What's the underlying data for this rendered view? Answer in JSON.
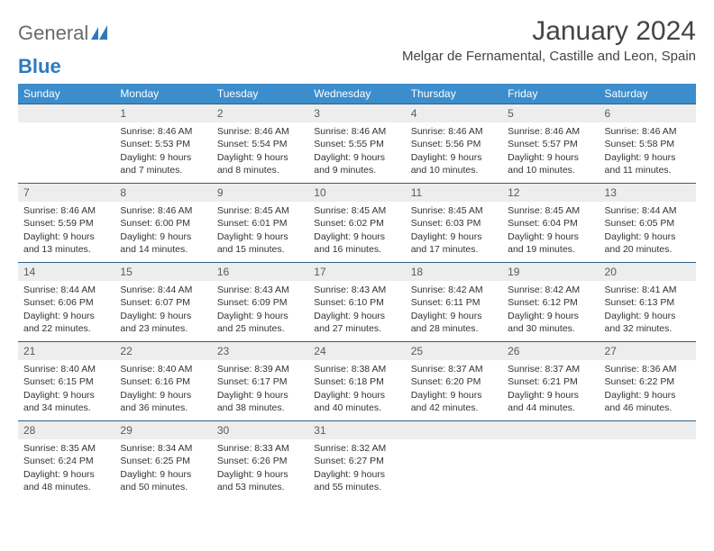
{
  "logo": {
    "text1": "General",
    "text2": "Blue"
  },
  "title": "January 2024",
  "location": "Melgar de Fernamental, Castille and Leon, Spain",
  "header_bg": "#3c8dcc",
  "daynum_bg": "#ededed",
  "border_color": "#2f5f8a",
  "weekdays": [
    "Sunday",
    "Monday",
    "Tuesday",
    "Wednesday",
    "Thursday",
    "Friday",
    "Saturday"
  ],
  "weeks": [
    [
      {
        "n": "",
        "sunrise": "",
        "sunset": "",
        "daylight": ""
      },
      {
        "n": "1",
        "sunrise": "Sunrise: 8:46 AM",
        "sunset": "Sunset: 5:53 PM",
        "daylight": "Daylight: 9 hours and 7 minutes."
      },
      {
        "n": "2",
        "sunrise": "Sunrise: 8:46 AM",
        "sunset": "Sunset: 5:54 PM",
        "daylight": "Daylight: 9 hours and 8 minutes."
      },
      {
        "n": "3",
        "sunrise": "Sunrise: 8:46 AM",
        "sunset": "Sunset: 5:55 PM",
        "daylight": "Daylight: 9 hours and 9 minutes."
      },
      {
        "n": "4",
        "sunrise": "Sunrise: 8:46 AM",
        "sunset": "Sunset: 5:56 PM",
        "daylight": "Daylight: 9 hours and 10 minutes."
      },
      {
        "n": "5",
        "sunrise": "Sunrise: 8:46 AM",
        "sunset": "Sunset: 5:57 PM",
        "daylight": "Daylight: 9 hours and 10 minutes."
      },
      {
        "n": "6",
        "sunrise": "Sunrise: 8:46 AM",
        "sunset": "Sunset: 5:58 PM",
        "daylight": "Daylight: 9 hours and 11 minutes."
      }
    ],
    [
      {
        "n": "7",
        "sunrise": "Sunrise: 8:46 AM",
        "sunset": "Sunset: 5:59 PM",
        "daylight": "Daylight: 9 hours and 13 minutes."
      },
      {
        "n": "8",
        "sunrise": "Sunrise: 8:46 AM",
        "sunset": "Sunset: 6:00 PM",
        "daylight": "Daylight: 9 hours and 14 minutes."
      },
      {
        "n": "9",
        "sunrise": "Sunrise: 8:45 AM",
        "sunset": "Sunset: 6:01 PM",
        "daylight": "Daylight: 9 hours and 15 minutes."
      },
      {
        "n": "10",
        "sunrise": "Sunrise: 8:45 AM",
        "sunset": "Sunset: 6:02 PM",
        "daylight": "Daylight: 9 hours and 16 minutes."
      },
      {
        "n": "11",
        "sunrise": "Sunrise: 8:45 AM",
        "sunset": "Sunset: 6:03 PM",
        "daylight": "Daylight: 9 hours and 17 minutes."
      },
      {
        "n": "12",
        "sunrise": "Sunrise: 8:45 AM",
        "sunset": "Sunset: 6:04 PM",
        "daylight": "Daylight: 9 hours and 19 minutes."
      },
      {
        "n": "13",
        "sunrise": "Sunrise: 8:44 AM",
        "sunset": "Sunset: 6:05 PM",
        "daylight": "Daylight: 9 hours and 20 minutes."
      }
    ],
    [
      {
        "n": "14",
        "sunrise": "Sunrise: 8:44 AM",
        "sunset": "Sunset: 6:06 PM",
        "daylight": "Daylight: 9 hours and 22 minutes."
      },
      {
        "n": "15",
        "sunrise": "Sunrise: 8:44 AM",
        "sunset": "Sunset: 6:07 PM",
        "daylight": "Daylight: 9 hours and 23 minutes."
      },
      {
        "n": "16",
        "sunrise": "Sunrise: 8:43 AM",
        "sunset": "Sunset: 6:09 PM",
        "daylight": "Daylight: 9 hours and 25 minutes."
      },
      {
        "n": "17",
        "sunrise": "Sunrise: 8:43 AM",
        "sunset": "Sunset: 6:10 PM",
        "daylight": "Daylight: 9 hours and 27 minutes."
      },
      {
        "n": "18",
        "sunrise": "Sunrise: 8:42 AM",
        "sunset": "Sunset: 6:11 PM",
        "daylight": "Daylight: 9 hours and 28 minutes."
      },
      {
        "n": "19",
        "sunrise": "Sunrise: 8:42 AM",
        "sunset": "Sunset: 6:12 PM",
        "daylight": "Daylight: 9 hours and 30 minutes."
      },
      {
        "n": "20",
        "sunrise": "Sunrise: 8:41 AM",
        "sunset": "Sunset: 6:13 PM",
        "daylight": "Daylight: 9 hours and 32 minutes."
      }
    ],
    [
      {
        "n": "21",
        "sunrise": "Sunrise: 8:40 AM",
        "sunset": "Sunset: 6:15 PM",
        "daylight": "Daylight: 9 hours and 34 minutes."
      },
      {
        "n": "22",
        "sunrise": "Sunrise: 8:40 AM",
        "sunset": "Sunset: 6:16 PM",
        "daylight": "Daylight: 9 hours and 36 minutes."
      },
      {
        "n": "23",
        "sunrise": "Sunrise: 8:39 AM",
        "sunset": "Sunset: 6:17 PM",
        "daylight": "Daylight: 9 hours and 38 minutes."
      },
      {
        "n": "24",
        "sunrise": "Sunrise: 8:38 AM",
        "sunset": "Sunset: 6:18 PM",
        "daylight": "Daylight: 9 hours and 40 minutes."
      },
      {
        "n": "25",
        "sunrise": "Sunrise: 8:37 AM",
        "sunset": "Sunset: 6:20 PM",
        "daylight": "Daylight: 9 hours and 42 minutes."
      },
      {
        "n": "26",
        "sunrise": "Sunrise: 8:37 AM",
        "sunset": "Sunset: 6:21 PM",
        "daylight": "Daylight: 9 hours and 44 minutes."
      },
      {
        "n": "27",
        "sunrise": "Sunrise: 8:36 AM",
        "sunset": "Sunset: 6:22 PM",
        "daylight": "Daylight: 9 hours and 46 minutes."
      }
    ],
    [
      {
        "n": "28",
        "sunrise": "Sunrise: 8:35 AM",
        "sunset": "Sunset: 6:24 PM",
        "daylight": "Daylight: 9 hours and 48 minutes."
      },
      {
        "n": "29",
        "sunrise": "Sunrise: 8:34 AM",
        "sunset": "Sunset: 6:25 PM",
        "daylight": "Daylight: 9 hours and 50 minutes."
      },
      {
        "n": "30",
        "sunrise": "Sunrise: 8:33 AM",
        "sunset": "Sunset: 6:26 PM",
        "daylight": "Daylight: 9 hours and 53 minutes."
      },
      {
        "n": "31",
        "sunrise": "Sunrise: 8:32 AM",
        "sunset": "Sunset: 6:27 PM",
        "daylight": "Daylight: 9 hours and 55 minutes."
      },
      {
        "n": "",
        "sunrise": "",
        "sunset": "",
        "daylight": ""
      },
      {
        "n": "",
        "sunrise": "",
        "sunset": "",
        "daylight": ""
      },
      {
        "n": "",
        "sunrise": "",
        "sunset": "",
        "daylight": ""
      }
    ]
  ]
}
